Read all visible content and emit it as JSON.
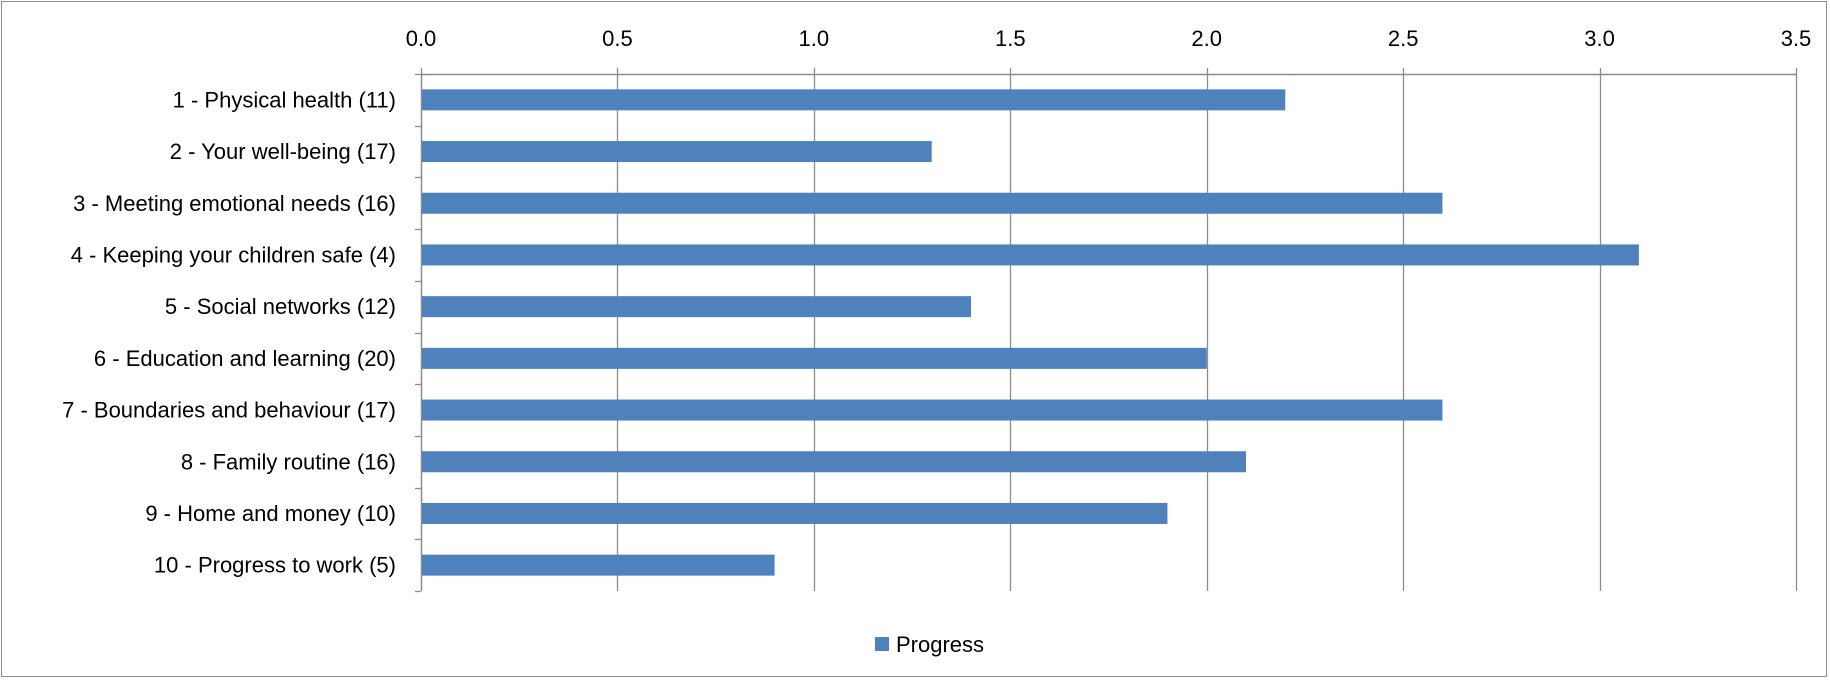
{
  "chart_data": {
    "type": "bar",
    "orientation": "horizontal",
    "categories": [
      "1 - Physical health (11)",
      "2 - Your well-being (17)",
      "3 - Meeting emotional needs (16)",
      "4 - Keeping your children safe (4)",
      "5 - Social networks (12)",
      "6 - Education and learning (20)",
      "7 - Boundaries and behaviour (17)",
      "8 - Family routine (16)",
      "9 - Home and money (10)",
      "10 - Progress to work (5)"
    ],
    "series": [
      {
        "name": "Progress",
        "color": "#4f81bd",
        "values": [
          2.2,
          1.3,
          2.6,
          3.1,
          1.4,
          2.0,
          2.6,
          2.1,
          1.9,
          0.9
        ]
      }
    ],
    "xlim": [
      0,
      3.5
    ],
    "x_ticks": [
      "0.0",
      "0.5",
      "1.0",
      "1.5",
      "2.0",
      "2.5",
      "3.0",
      "3.5"
    ],
    "x_axis_position": "top",
    "grid": "vertical",
    "legend_position": "bottom",
    "title": "",
    "xlabel": "",
    "ylabel": ""
  }
}
